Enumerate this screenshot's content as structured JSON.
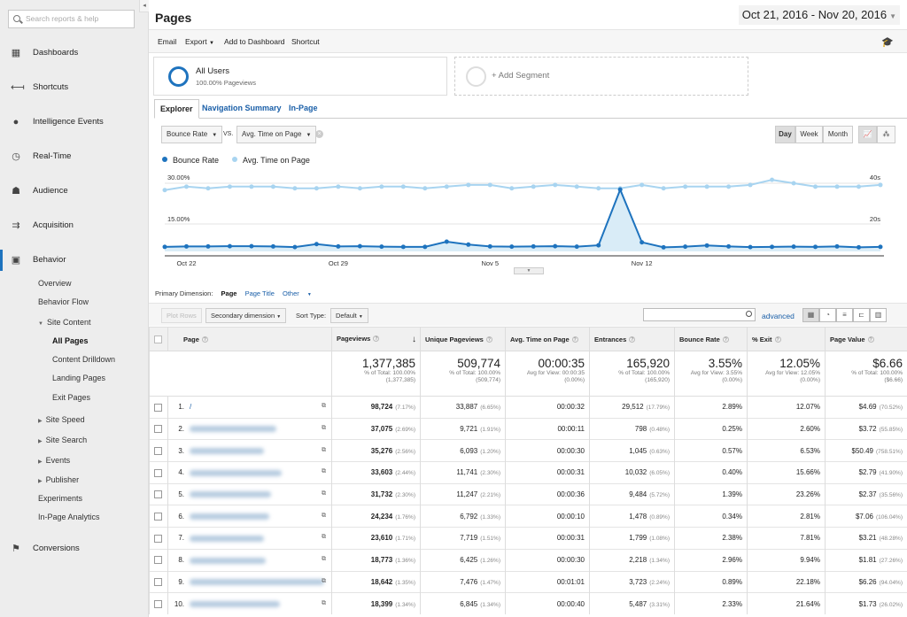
{
  "sidebar": {
    "search_placeholder": "Search reports & help",
    "collapse_icon": "◂",
    "nav": [
      {
        "label": "Dashboards",
        "icon": "dashboard-icon"
      },
      {
        "label": "Shortcuts",
        "icon": "shortcut-icon"
      },
      {
        "label": "Intelligence Events",
        "icon": "bulb-icon"
      },
      {
        "label": "Real-Time",
        "icon": "clock-icon"
      },
      {
        "label": "Audience",
        "icon": "people-icon"
      },
      {
        "label": "Acquisition",
        "icon": "acquisition-icon"
      },
      {
        "label": "Behavior",
        "icon": "behavior-icon"
      },
      {
        "label": "Conversions",
        "icon": "flag-icon"
      }
    ],
    "behavior_sub": {
      "overview": "Overview",
      "behavior_flow": "Behavior Flow",
      "site_content": "Site Content",
      "all_pages": "All Pages",
      "content_drilldown": "Content Drilldown",
      "landing_pages": "Landing Pages",
      "exit_pages": "Exit Pages",
      "site_speed": "Site Speed",
      "site_search": "Site Search",
      "events": "Events",
      "publisher": "Publisher",
      "experiments": "Experiments",
      "in_page_analytics": "In-Page Analytics"
    }
  },
  "header": {
    "title": "Pages",
    "date_range": "Oct 21, 2016 - Nov 20, 2016"
  },
  "toolbar": {
    "email": "Email",
    "export": "Export",
    "add_to_dashboard": "Add to Dashboard",
    "shortcut": "Shortcut"
  },
  "segments": {
    "all_users": "All Users",
    "all_users_pct": "100.00% Pageviews",
    "add_segment": "+ Add Segment"
  },
  "tabs": {
    "explorer": "Explorer",
    "navigation_summary": "Navigation Summary",
    "in_page": "In-Page"
  },
  "metrics": {
    "metric1": "Bounce Rate",
    "vs": "VS.",
    "metric2": "Avg. Time on Page"
  },
  "granularity": {
    "day": "Day",
    "week": "Week",
    "month": "Month"
  },
  "colors": {
    "series1": "#1e73be",
    "series2": "#a8d4f0"
  },
  "chart_data": {
    "type": "line",
    "dates_start": "Oct 21, 2016",
    "x_tick_labels": [
      "Oct 22",
      "Oct 29",
      "Nov 5",
      "Nov 12"
    ],
    "x_tick_index": [
      1,
      8,
      15,
      22
    ],
    "series": [
      {
        "name": "Bounce Rate",
        "axis": "left",
        "unit": "%",
        "values": [
          2.0,
          2.2,
          2.3,
          2.2,
          2.4,
          2.4,
          2.3,
          2.0,
          3.2,
          2.4,
          2.3,
          2.4,
          2.4,
          2.1,
          2.7,
          2.4,
          3.1,
          3.2,
          2.3,
          2.4,
          2.0,
          2.0,
          2.1,
          2.6,
          5.3,
          2.5,
          1.9,
          2.2,
          2.5,
          2.2,
          2.1,
          1.8,
          2.2,
          2.2,
          2.3,
          2.4,
          2.2,
          2.0,
          2.0,
          2.2,
          2.3,
          2.2,
          2.4,
          2.3,
          2.2,
          2.0,
          2.2,
          2.1,
          2.0,
          1.8,
          2.1,
          3.8,
          5.8,
          4.6,
          3.3,
          2.6,
          2.3,
          2.4,
          2.1,
          2.0,
          2.2,
          2.7,
          1.9,
          2.2,
          2.4,
          2.2,
          2.4,
          2.1,
          2.2,
          2.4,
          2.3,
          2.1,
          2.3,
          2.4,
          2.5,
          4.3,
          7.2,
          9.0,
          12.0,
          16.0,
          20.0,
          26.0,
          22.0,
          17.0,
          11.0,
          7.0,
          3.3,
          2.5,
          2.2,
          1.9,
          2.1,
          2.4,
          2.6,
          2.3,
          2.3,
          2.2,
          2.5,
          2.4,
          2.3,
          2.7,
          2.6,
          2.2,
          2.3,
          2.5,
          2.6,
          2.4,
          2.4,
          2.3,
          2.4,
          2.2,
          2.4,
          2.4,
          2.0,
          2.1,
          2.3,
          2.5,
          2.5,
          2.2,
          2.1,
          2.0,
          1.9
        ],
        "plotted_values": [
          2.0,
          2.2,
          2.2,
          2.3,
          2.3,
          2.2,
          1.9,
          3.2,
          2.2,
          2.3,
          2.1,
          2.0,
          2.0,
          4.3,
          3.0,
          2.2,
          2.1,
          2.2,
          2.3,
          2.1,
          2.7,
          27.2,
          4.0,
          1.8,
          2.1,
          2.6,
          2.2,
          1.9,
          2.0,
          2.1,
          2.0,
          2.2,
          1.8,
          2.0
        ]
      },
      {
        "name": "Avg. Time on Page",
        "axis": "right",
        "unit": "s",
        "values": [
          36,
          37,
          37,
          38,
          38,
          37,
          38,
          38,
          37,
          37,
          38,
          39,
          37,
          38,
          38,
          37,
          38,
          39,
          38,
          37,
          37,
          37,
          37,
          37,
          39,
          38,
          40,
          38,
          37,
          38,
          38,
          39,
          38,
          38,
          39,
          38,
          40,
          38,
          38,
          38,
          38,
          37,
          38,
          39,
          40,
          39,
          40,
          38,
          39,
          38,
          39,
          39,
          38,
          37,
          38,
          38,
          39,
          38,
          38,
          37,
          38,
          39,
          38,
          38,
          39,
          38,
          38,
          39,
          38,
          38,
          39,
          38,
          39,
          37,
          38,
          37,
          38,
          38,
          39,
          38,
          39,
          41,
          40,
          39,
          39,
          40,
          40,
          38,
          40,
          37,
          38,
          38,
          38,
          39,
          39,
          38,
          38,
          39,
          39,
          38,
          38,
          38,
          39,
          38,
          38,
          39,
          39,
          38,
          39,
          38,
          38,
          38,
          39,
          38,
          39,
          38,
          38,
          39,
          38,
          38,
          38
        ],
        "plotted_values": [
          36,
          38,
          37,
          38,
          38,
          38,
          37,
          37,
          38,
          37,
          38,
          38,
          37,
          38,
          39,
          39,
          37,
          38,
          39,
          38,
          37,
          37,
          39,
          37,
          38,
          38,
          38,
          39,
          42,
          40,
          38,
          38,
          38,
          39
        ]
      }
    ],
    "left_axis_ticks": [
      "30.00%",
      "15.00%"
    ],
    "right_axis_ticks": [
      "40s",
      "20s"
    ]
  },
  "dimension": {
    "label": "Primary Dimension:",
    "page": "Page",
    "page_title": "Page Title",
    "other": "Other"
  },
  "controls": {
    "plot_rows": "Plot Rows",
    "secondary_dimension": "Secondary dimension",
    "sort_type_label": "Sort Type:",
    "sort_type_value": "Default",
    "advanced": "advanced"
  },
  "table": {
    "headers": [
      "Page",
      "Pageviews",
      "Unique Pageviews",
      "Avg. Time on Page",
      "Entrances",
      "Bounce Rate",
      "% Exit",
      "Page Value"
    ],
    "totals": [
      {
        "big": "1,377,385",
        "s1": "% of Total: 100.00%",
        "s2": "(1,377,385)"
      },
      {
        "big": "509,774",
        "s1": "% of Total: 100.00%",
        "s2": "(509,774)"
      },
      {
        "big": "00:00:35",
        "s1": "Avg for View: 00:00:35",
        "s2": "(0.00%)"
      },
      {
        "big": "165,920",
        "s1": "% of Total: 100.00%",
        "s2": "(165,920)"
      },
      {
        "big": "3.55%",
        "s1": "Avg for View: 3.55%",
        "s2": "(0.00%)"
      },
      {
        "big": "12.05%",
        "s1": "Avg for View: 12.05%",
        "s2": "(0.00%)"
      },
      {
        "big": "$6.66",
        "s1": "% of Total: 100.00%",
        "s2": "($6.66)"
      }
    ],
    "rows": [
      {
        "n": "1.",
        "page": "/",
        "pv": "98,724",
        "pvp": "(7.17%)",
        "upv": "33,887",
        "upvp": "(6.65%)",
        "atp": "00:00:32",
        "ent": "29,512",
        "entp": "(17.79%)",
        "br": "2.89%",
        "ex": "12.07%",
        "val": "$4.69",
        "valp": "(70.52%)"
      },
      {
        "n": "2.",
        "page": "",
        "pv": "37,075",
        "pvp": "(2.69%)",
        "upv": "9,721",
        "upvp": "(1.91%)",
        "atp": "00:00:11",
        "ent": "798",
        "entp": "(0.48%)",
        "br": "0.25%",
        "ex": "2.60%",
        "val": "$3.72",
        "valp": "(55.85%)"
      },
      {
        "n": "3.",
        "page": "",
        "pv": "35,276",
        "pvp": "(2.56%)",
        "upv": "6,093",
        "upvp": "(1.20%)",
        "atp": "00:00:30",
        "ent": "1,045",
        "entp": "(0.63%)",
        "br": "0.57%",
        "ex": "6.53%",
        "val": "$50.49",
        "valp": "(758.51%)"
      },
      {
        "n": "4.",
        "page": "",
        "pv": "33,603",
        "pvp": "(2.44%)",
        "upv": "11,741",
        "upvp": "(2.30%)",
        "atp": "00:00:31",
        "ent": "10,032",
        "entp": "(6.05%)",
        "br": "0.40%",
        "ex": "15.66%",
        "val": "$2.79",
        "valp": "(41.90%)"
      },
      {
        "n": "5.",
        "page": "",
        "pv": "31,732",
        "pvp": "(2.30%)",
        "upv": "11,247",
        "upvp": "(2.21%)",
        "atp": "00:00:36",
        "ent": "9,484",
        "entp": "(5.72%)",
        "br": "1.39%",
        "ex": "23.26%",
        "val": "$2.37",
        "valp": "(35.56%)"
      },
      {
        "n": "6.",
        "page": "",
        "pv": "24,234",
        "pvp": "(1.76%)",
        "upv": "6,792",
        "upvp": "(1.33%)",
        "atp": "00:00:10",
        "ent": "1,478",
        "entp": "(0.89%)",
        "br": "0.34%",
        "ex": "2.81%",
        "val": "$7.06",
        "valp": "(106.04%)"
      },
      {
        "n": "7.",
        "page": "",
        "pv": "23,610",
        "pvp": "(1.71%)",
        "upv": "7,719",
        "upvp": "(1.51%)",
        "atp": "00:00:31",
        "ent": "1,799",
        "entp": "(1.08%)",
        "br": "2.38%",
        "ex": "7.81%",
        "val": "$3.21",
        "valp": "(48.28%)"
      },
      {
        "n": "8.",
        "page": "",
        "pv": "18,773",
        "pvp": "(1.36%)",
        "upv": "6,425",
        "upvp": "(1.26%)",
        "atp": "00:00:30",
        "ent": "2,218",
        "entp": "(1.34%)",
        "br": "2.96%",
        "ex": "9.94%",
        "val": "$1.81",
        "valp": "(27.26%)"
      },
      {
        "n": "9.",
        "page": "",
        "pv": "18,642",
        "pvp": "(1.35%)",
        "upv": "7,476",
        "upvp": "(1.47%)",
        "atp": "00:01:01",
        "ent": "3,723",
        "entp": "(2.24%)",
        "br": "0.89%",
        "ex": "22.18%",
        "val": "$6.26",
        "valp": "(94.04%)"
      },
      {
        "n": "10.",
        "page": "",
        "pv": "18,399",
        "pvp": "(1.34%)",
        "upv": "6,845",
        "upvp": "(1.34%)",
        "atp": "00:00:40",
        "ent": "5,487",
        "entp": "(3.31%)",
        "br": "2.33%",
        "ex": "21.64%",
        "val": "$1.73",
        "valp": "(26.02%)"
      }
    ]
  }
}
